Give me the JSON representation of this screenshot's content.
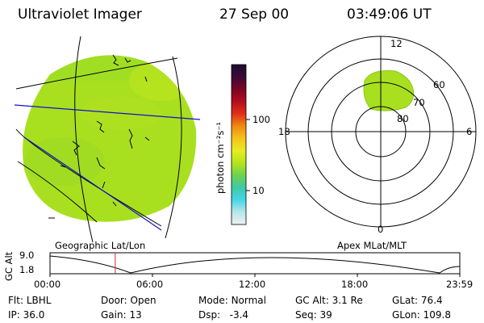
{
  "header": {
    "instrument": "Ultraviolet Imager",
    "date": "27 Sep 00",
    "time": "03:49:06 UT"
  },
  "colorbar": {
    "unit": "photon cm⁻²s⁻¹",
    "ticks": [
      "100",
      "10"
    ],
    "colors": [
      "#1a0d2e",
      "#3b0a36",
      "#7a0624",
      "#b30d1e",
      "#e0301a",
      "#f08a10",
      "#f6c21a",
      "#e8ec22",
      "#b4e41c",
      "#6ed24e",
      "#3ec9a8",
      "#45d6e6",
      "#b8e6ea",
      "#eef2f2"
    ]
  },
  "geo_panel": {
    "label": "Geographic Lat/Lon",
    "fill_color": "#a8e020"
  },
  "polar_panel": {
    "label": "Apex MLat/MLT",
    "mlt_labels": {
      "top": "12",
      "left": "18",
      "right": "6",
      "bottom": "0"
    },
    "mlat_labels": [
      "60",
      "70",
      "80"
    ]
  },
  "altitude_plot": {
    "ylabel": "GC Alt",
    "yticks": [
      "9.0",
      "1.8"
    ],
    "xticks": [
      "00:00",
      "06:00",
      "12:00",
      "18:00",
      "23:59"
    ],
    "current_time_marker_hours": 3.82
  },
  "info": {
    "row1": [
      {
        "k": "Flt:",
        "v": "LBHL"
      },
      {
        "k": "Door:",
        "v": "Open"
      },
      {
        "k": "Mode:",
        "v": "Normal"
      },
      {
        "k": "GC Alt:",
        "v": "3.1 Re"
      },
      {
        "k": "GLat:",
        "v": "76.4"
      }
    ],
    "row2": [
      {
        "k": "IP:",
        "v": "36.0"
      },
      {
        "k": "Gain:",
        "v": "13"
      },
      {
        "k": "Dsp:",
        "v": "-3.4"
      },
      {
        "k": "Seq:",
        "v": "39"
      },
      {
        "k": "GLon:",
        "v": "109.8"
      }
    ]
  }
}
